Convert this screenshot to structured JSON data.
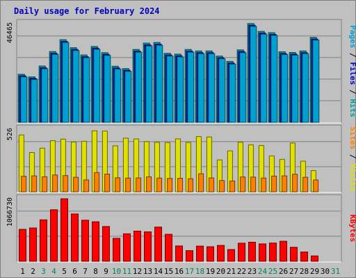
{
  "colors": {
    "background": "#c0c0c0",
    "plot_background": "#c0c0c0",
    "title": "#0000c0",
    "pages": "#00a0d0",
    "files": "#0000c0",
    "hits": "#00a0a0",
    "sites": "#ff8000",
    "visits": "#e0e000",
    "kbytes": "#ff0000",
    "weekday_label": "#000000",
    "weekend_label": "#00805a",
    "separator": "#000000"
  },
  "chart_data": {
    "type": "bar",
    "title": "Daily usage for February 2024",
    "days": [
      "1",
      "2",
      "3",
      "4",
      "5",
      "6",
      "7",
      "8",
      "9",
      "10",
      "11",
      "12",
      "13",
      "14",
      "15",
      "16",
      "17",
      "18",
      "19",
      "20",
      "21",
      "22",
      "23",
      "24",
      "25",
      "26",
      "27",
      "28",
      "29",
      "30",
      "31"
    ],
    "weekend_days": [
      "3",
      "4",
      "10",
      "11",
      "17",
      "18",
      "24",
      "25",
      "31"
    ],
    "panels": [
      {
        "name": "hits-files-pages",
        "y_max_label": "46465",
        "ylim": [
          0,
          46465
        ],
        "grid": true,
        "ylabel_parts": [
          {
            "text": "Pages",
            "color": "#00a0d0"
          },
          {
            "text": " / ",
            "color": "#000000"
          },
          {
            "text": "Files",
            "color": "#0000c0"
          },
          {
            "text": " / ",
            "color": "#000000"
          },
          {
            "text": "Hits",
            "color": "#00a0a0"
          }
        ],
        "series": [
          {
            "name": "Hits",
            "color": "#00a0a0",
            "values": [
              22600,
              21400,
              26500,
              33300,
              38900,
              35100,
              31700,
              35700,
              32800,
              26400,
              25300,
              34300,
              37300,
              37600,
              32500,
              32100,
              34300,
              33600,
              33600,
              31200,
              28700,
              34100,
              46500,
              42800,
              42200,
              33200,
              32900,
              33600,
              40000,
              null,
              null
            ]
          },
          {
            "name": "Files",
            "color": "#0000c0",
            "values": [
              21900,
              20700,
              25700,
              32500,
              38100,
              34300,
              30900,
              34900,
              32000,
              25600,
              24500,
              33500,
              36500,
              36800,
              31700,
              31300,
              33500,
              32800,
              32800,
              30400,
              27900,
              33300,
              45700,
              42000,
              41400,
              32400,
              32100,
              32800,
              39200,
              null,
              null
            ]
          },
          {
            "name": "Pages",
            "color": "#00a0d0",
            "values": [
              21400,
              20200,
              25200,
              32000,
              37600,
              33800,
              30400,
              34400,
              31500,
              25100,
              24000,
              33000,
              36000,
              36300,
              31200,
              30800,
              33000,
              32300,
              32300,
              29900,
              27400,
              32800,
              45200,
              41500,
              40900,
              31900,
              31600,
              32300,
              38700,
              null,
              null
            ]
          }
        ]
      },
      {
        "name": "visits-sites",
        "y_max_label": "526",
        "ylim": [
          0,
          526
        ],
        "grid": true,
        "ylabel_parts": [
          {
            "text": "Sites",
            "color": "#ff8000"
          },
          {
            "text": " / ",
            "color": "#000000"
          },
          {
            "text": "Visits",
            "color": "#e0e000"
          }
        ],
        "series": [
          {
            "name": "Visits",
            "color": "#e0e000",
            "values": [
              478,
              330,
              367,
              430,
              443,
              419,
              425,
              513,
              511,
              387,
              451,
              445,
              422,
              416,
              414,
              445,
              415,
              464,
              461,
              268,
              344,
              417,
              395,
              389,
              302,
              273,
              410,
              258,
              178,
              null,
              null
            ]
          },
          {
            "name": "Sites",
            "color": "#ff8000",
            "values": [
              131,
              134,
              127,
              142,
              137,
              122,
              100,
              162,
              149,
              118,
              116,
              117,
              126,
              116,
              113,
              114,
              110,
              152,
              117,
              95,
              91,
              125,
              124,
              116,
              132,
              134,
              148,
              122,
              100,
              null,
              null
            ]
          }
        ]
      },
      {
        "name": "kbytes",
        "y_max_label": "1066730",
        "ylim": [
          0,
          1066730
        ],
        "grid": true,
        "ylabel_parts": [
          {
            "text": "KBytes",
            "color": "#ff0000"
          }
        ],
        "series": [
          {
            "name": "KBytes",
            "color": "#ff0000",
            "values": [
              545000,
              569000,
              708000,
              879000,
              1066730,
              807000,
              702000,
              675000,
              594000,
              392000,
              469000,
              516000,
              502000,
              584000,
              461000,
              262000,
              182000,
              260000,
              249000,
              271000,
              202000,
              309000,
              326000,
              298000,
              312000,
              342000,
              240000,
              159000,
              93000,
              null,
              null
            ]
          }
        ]
      }
    ]
  }
}
